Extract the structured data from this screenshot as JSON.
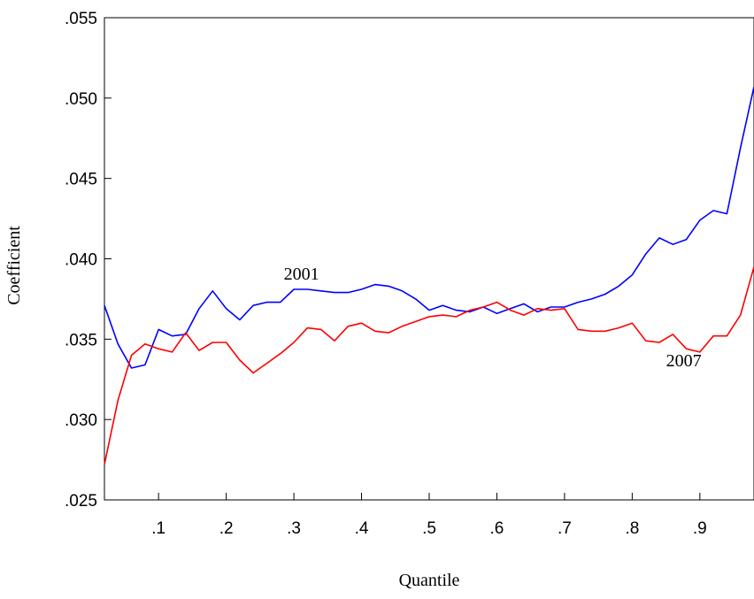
{
  "chart_data": {
    "type": "line",
    "title": "",
    "xlabel": "Quantile",
    "ylabel": "Coefficient",
    "xlim": [
      0.02,
      0.98
    ],
    "ylim": [
      0.025,
      0.055
    ],
    "x_ticks": [
      0.1,
      0.2,
      0.3,
      0.4,
      0.5,
      0.6,
      0.7,
      0.8,
      0.9
    ],
    "x_tick_labels": [
      ".1",
      ".2",
      ".3",
      ".4",
      ".5",
      ".6",
      ".7",
      ".8",
      ".9"
    ],
    "y_ticks": [
      0.025,
      0.03,
      0.035,
      0.04,
      0.045,
      0.05,
      0.055
    ],
    "y_tick_labels": [
      ".025",
      ".030",
      ".035",
      ".040",
      ".045",
      ".050",
      ".055"
    ],
    "grid": false,
    "legend": "none",
    "x": [
      0.02,
      0.04,
      0.06,
      0.08,
      0.1,
      0.12,
      0.14,
      0.16,
      0.18,
      0.2,
      0.22,
      0.24,
      0.26,
      0.28,
      0.3,
      0.32,
      0.34,
      0.36,
      0.38,
      0.4,
      0.42,
      0.44,
      0.46,
      0.48,
      0.5,
      0.52,
      0.54,
      0.56,
      0.58,
      0.6,
      0.62,
      0.64,
      0.66,
      0.68,
      0.7,
      0.72,
      0.74,
      0.76,
      0.78,
      0.8,
      0.82,
      0.84,
      0.86,
      0.88,
      0.9,
      0.92,
      0.94,
      0.96,
      0.98
    ],
    "series": [
      {
        "name": "2001",
        "color": "#0000ff",
        "label_at": [
          0.285,
          0.0387
        ],
        "values": [
          0.0371,
          0.0347,
          0.0332,
          0.0334,
          0.0356,
          0.0352,
          0.0353,
          0.0369,
          0.038,
          0.0369,
          0.0362,
          0.0371,
          0.0373,
          0.0373,
          0.0381,
          0.0381,
          0.038,
          0.0379,
          0.0379,
          0.0381,
          0.0384,
          0.0383,
          0.038,
          0.0375,
          0.0368,
          0.0371,
          0.0368,
          0.0367,
          0.037,
          0.0366,
          0.0369,
          0.0372,
          0.0367,
          0.037,
          0.037,
          0.0373,
          0.0375,
          0.0378,
          0.0383,
          0.039,
          0.0403,
          0.0413,
          0.0409,
          0.0412,
          0.0424,
          0.043,
          0.0428,
          0.0469,
          0.0507
        ]
      },
      {
        "name": "2007",
        "color": "#ff0000",
        "label_at": [
          0.85,
          0.0333
        ],
        "values": [
          0.0272,
          0.0312,
          0.034,
          0.0347,
          0.0344,
          0.0342,
          0.0354,
          0.0343,
          0.0348,
          0.0348,
          0.0337,
          0.0329,
          0.0335,
          0.0341,
          0.0348,
          0.0357,
          0.0356,
          0.0349,
          0.0358,
          0.036,
          0.0355,
          0.0354,
          0.0358,
          0.0361,
          0.0364,
          0.0365,
          0.0364,
          0.0368,
          0.037,
          0.0373,
          0.0368,
          0.0365,
          0.0369,
          0.0368,
          0.0369,
          0.0356,
          0.0355,
          0.0355,
          0.0357,
          0.036,
          0.0349,
          0.0348,
          0.0353,
          0.0344,
          0.0342,
          0.0352,
          0.0352,
          0.0365,
          0.0395
        ]
      }
    ]
  }
}
